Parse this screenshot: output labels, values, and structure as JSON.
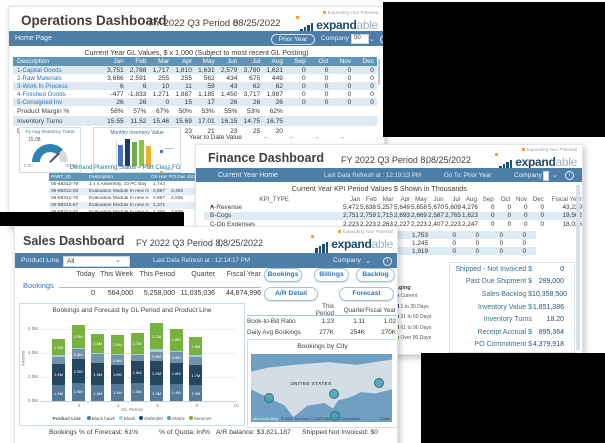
{
  "brand": {
    "tagline": "Expanding Your Potential",
    "name_bold": "expand",
    "name_light": "able"
  },
  "operations": {
    "title": "Operations Dashboard",
    "period": "FY 2022 Q3 Period 8",
    "date": "08/25/2022",
    "nav": {
      "home": "Home Page",
      "prior_year": "Prior Year",
      "company_label": "Company",
      "company_value": "00"
    },
    "subtitle": "Current Year GL Values,   $ x 1,000      (Subject to most recent GL Posting)",
    "table": {
      "columns": [
        "Description",
        "Jan",
        "Feb",
        "Mar",
        "Apr",
        "May",
        "Jun",
        "Jul",
        "Aug",
        "Sep",
        "Oct",
        "Nov",
        "Dec"
      ],
      "rows": [
        {
          "label": "1-Capital Goods",
          "type": "link",
          "values": [
            "3,751",
            "2,788",
            "1,717",
            "1,810",
            "1,631",
            "2,579",
            "3,780",
            "1,621",
            "0",
            "0",
            "0",
            "0"
          ]
        },
        {
          "label": "2-Raw Materials",
          "type": "link",
          "values": [
            "3,686",
            "2,591",
            "255",
            "255",
            "562",
            "434",
            "675",
            "449",
            "0",
            "0",
            "0",
            "0"
          ]
        },
        {
          "label": "3-Work In Process",
          "type": "link",
          "values": [
            "6",
            "6",
            "10",
            "11",
            "59",
            "43",
            "62",
            "62",
            "0",
            "0",
            "0",
            "0"
          ]
        },
        {
          "label": "4-Finished Goods",
          "type": "link",
          "values": [
            "-477",
            "-1,833",
            "1,271",
            "1,887",
            "1,185",
            "1,450",
            "3,717",
            "1,987",
            "0",
            "0",
            "0",
            "0"
          ]
        },
        {
          "label": "5-Consigned Inv",
          "type": "link",
          "values": [
            "26",
            "26",
            "0",
            "15",
            "17",
            "26",
            "26",
            "26",
            "0",
            "0",
            "0",
            "0"
          ]
        },
        {
          "label": "Product Margin %",
          "type": "metric",
          "values": [
            "58%",
            "57%",
            "67%",
            "50%",
            "53%",
            "55%",
            "53%",
            "62%",
            "",
            "",
            "",
            ""
          ]
        },
        {
          "label": "Inventory Turns",
          "type": "metric",
          "values": [
            "15.55",
            "11.52",
            "15.46",
            "15.69",
            "17.01",
            "16.15",
            "14.75",
            "16.75",
            "",
            "",
            "",
            ""
          ]
        },
        {
          "label": "Days In Inventory",
          "type": "metric",
          "values": [
            "22",
            "32",
            "23",
            "23",
            "21",
            "23",
            "25",
            "20",
            "",
            "",
            "",
            ""
          ]
        }
      ]
    },
    "ytd_label": "Year to Date Value",
    "demand": {
      "title": "Demand Planning Status – Part Class FG",
      "columns": [
        "PART_ID",
        "Description",
        "On Hand",
        "PO Due",
        "Job Due"
      ],
      "rows": [
        {
          "id": "06-88312-79",
          "desc": "1 x 4 Assembly, 10 PC Bay",
          "on_hand": "1,743",
          "po_due": "",
          "job_due": ""
        },
        {
          "id": "06-88312-03",
          "desc": "Evaluation Module In new Assy (M=>1...",
          "on_hand": "2,987",
          "po_due": "3,455",
          "job_due": ""
        },
        {
          "id": "06-88312-76",
          "desc": "Evaluation Module In new Assy (M=>...",
          "on_hand": "2,967",
          "po_due": "2,938",
          "job_due": ""
        },
        {
          "id": "06-88312-67",
          "desc": "Evaluation Module In new Assy (M=>1...",
          "on_hand": "1,371",
          "po_due": "",
          "job_due": ""
        },
        {
          "id": "06-88312-45",
          "desc": "Evaluation Module In new Assy (M=>4...",
          "on_hand": "1,206",
          "po_due": "2,838",
          "job_due": ""
        }
      ]
    }
  },
  "finance": {
    "title": "Finance Dashboard",
    "period": "FY 2022 Q3 Period 8,",
    "date": "08/25/2022",
    "nav": {
      "home": "Current Year Home",
      "refresh": "Last Data Refresh at : 12:19:13 PM",
      "goto_label": "Go To:",
      "goto_value": "Prior Year",
      "company_label": "Company"
    },
    "subtitle": "Current Year KPI Period Values $ Shown in Thousands",
    "table": {
      "columns": [
        "KPI_TYPE",
        "Jan",
        "Feb",
        "Mar",
        "Apr",
        "May",
        "Jun",
        "Jul",
        "Aug",
        "Sep",
        "Oct",
        "Nov",
        "Dec",
        "Fiscal Year"
      ],
      "rows": [
        {
          "label": "A-Revenue",
          "values": [
            "5,472",
            "5,638",
            "5,257",
            "5,649",
            "5,658",
            "5,670",
            "5,609",
            "4,276",
            "0",
            "0",
            "0",
            "0"
          ],
          "fiscal": "43,229"
        },
        {
          "label": "B-Cogs",
          "values": [
            "2,751",
            "2,759",
            "1,715",
            "2,693",
            "2,669",
            "2,587",
            "2,765",
            "1,623",
            "0",
            "0",
            "0",
            "0"
          ],
          "fiscal": "19,562"
        },
        {
          "label": "C-Op Expenses",
          "values": [
            "2,223",
            "2,223",
            "2,263",
            "2,227",
            "2,223",
            "2,407",
            "2,223",
            "2,247",
            "0",
            "0",
            "0",
            "0"
          ],
          "fiscal": "18,036"
        }
      ]
    },
    "fragment_rows": [
      [
        "1,753",
        "0",
        "0",
        "0",
        "0"
      ],
      [
        "1,245",
        "0",
        "0",
        "0",
        "0"
      ],
      [
        "1,919",
        "0",
        "0",
        "0",
        "0"
      ]
    ],
    "kpis": [
      {
        "label": "Shipped - Not Invoiced $",
        "value": "0"
      },
      {
        "label": "Past Due Shipment $",
        "value": "299,000"
      },
      {
        "label": "Sales Backlog $",
        "value": "10,358,500"
      },
      {
        "label": "Inventory Value $",
        "value": "1,851,386"
      },
      {
        "label": "Inventory Turns",
        "value": "18.20"
      },
      {
        "label": "Receipt Accrual $",
        "value": "895,364"
      },
      {
        "label": "PO Commitment $",
        "value": "4,379,918"
      }
    ],
    "aging": {
      "title": "Aging",
      "items": [
        {
          "label": "Current",
          "color": "#4472c4"
        },
        {
          "label": "1 to 30 Days",
          "color": "#203864"
        },
        {
          "label": "31 to 60 Days",
          "color": "#2f5496"
        },
        {
          "label": "61 to 90 Days",
          "color": "#c55a11"
        },
        {
          "label": "Over 90 Days",
          "color": "#70ad47"
        }
      ]
    }
  },
  "sales": {
    "title": "Sales Dashboard",
    "period": "FY 2022 Q3 Period 8,",
    "date": "08/25/2022",
    "nav": {
      "product_line_label": "Product Line",
      "product_line_value": "All",
      "refresh": "Last Data Refresh at : 12:14:17 PM",
      "company_label": "Company"
    },
    "summary": {
      "label": "Bookings",
      "columns": [
        "Today",
        "This Week",
        "This Period",
        "Quarter",
        "Fiscal Year"
      ],
      "values": [
        "0",
        "564,000",
        "5,258,000",
        "11,035,036",
        "44,874,996"
      ]
    },
    "buttons_row1": [
      "Bookings",
      "Billings",
      "Backlog"
    ],
    "buttons_row2": [
      "A/R Detail",
      "Forecast"
    ],
    "b2b": {
      "columns": [
        "This Period",
        "Quarter",
        "Fiscal Year"
      ],
      "rows": [
        {
          "label": "Book-to-Bill Ratio",
          "values": [
            "1.23",
            "1.11",
            "1.02"
          ]
        },
        {
          "label": "Daily Avg Bookings",
          "values": [
            "277K",
            "254K",
            "270K"
          ]
        }
      ]
    },
    "map": {
      "title": "Bookings by City",
      "country": "UNITED STATES",
      "attribution": "© 2022 TomTom, © 2022 Microsoft Corporation",
      "terms": "Terms",
      "bing": "Microsoft Bing",
      "markers": [
        {
          "x": 9,
          "y": 58
        },
        {
          "x": 55,
          "y": 52
        },
        {
          "x": 87,
          "y": 36
        },
        {
          "x": 56,
          "y": 84
        }
      ]
    },
    "footer": [
      "Bookings % of Forecast: 61%",
      "% of Quota: inf%",
      "A/R balance: $3,821,187",
      "Shipped Not Invoiced: $0"
    ]
  },
  "chart_data": [
    {
      "type": "bar",
      "stacked": true,
      "title": "Bookings and Forecast by GL Period and Product Line",
      "xlabel": "GL Period",
      "ylabel": "Amount",
      "x": [
        1,
        2,
        3,
        4,
        5,
        6,
        7,
        8
      ],
      "xlim": [
        0,
        10
      ],
      "ylim": [
        0,
        6.5
      ],
      "yticks": [
        "0.0M",
        "2.0M",
        "4.0M",
        "6.0M"
      ],
      "xticks": [
        2,
        4,
        6,
        8,
        10
      ],
      "unit": "M",
      "series": [
        {
          "name": "Black hawk",
          "color": "#53799b",
          "values": [
            1.3,
            1.5,
            1.3,
            1.4,
            1.5,
            1.3,
            1.4,
            1.3
          ]
        },
        {
          "name": "Defender",
          "color": "#24465e",
          "values": [
            1.8,
            2.0,
            1.9,
            1.6,
            1.8,
            2.0,
            1.8,
            1.7
          ]
        },
        {
          "name": "Matrix",
          "color": "#7192a8",
          "values": [
            0.6,
            0.8,
            0.7,
            0.8,
            0.5,
            0.8,
            0.9,
            0.7
          ]
        },
        {
          "name": "Blank",
          "color": "#a9cddd",
          "values": [
            0.1,
            0.15,
            0.1,
            0.1,
            0.15,
            0.2,
            0.1,
            0.1
          ]
        },
        {
          "name": "Services",
          "color": "#77b23f",
          "values": [
            1.4,
            1.9,
            1.6,
            1.6,
            1.7,
            2.2,
            1.8,
            1.5
          ]
        }
      ],
      "legend_title": "Product Line",
      "legend_order": [
        "Black hawk",
        "Blank",
        "Defender",
        "Matrix",
        "Services"
      ]
    },
    {
      "type": "bar",
      "title": "Monthly Inventory Value",
      "values": [
        1.5,
        1.9,
        1.7,
        1.8,
        1.4
      ],
      "colors": [
        "#4472c4",
        "#1f3864",
        "#70ad47",
        "#8cc63f",
        "#eeaf30"
      ]
    },
    {
      "type": "gauge",
      "title": "Fy Avg Inventory Turns",
      "value": 15.08,
      "min": 0,
      "max": 20,
      "min_label": "0.00",
      "max_label": "20.00",
      "value_label": "15.08",
      "arc_color": "#2e83b5"
    }
  ]
}
